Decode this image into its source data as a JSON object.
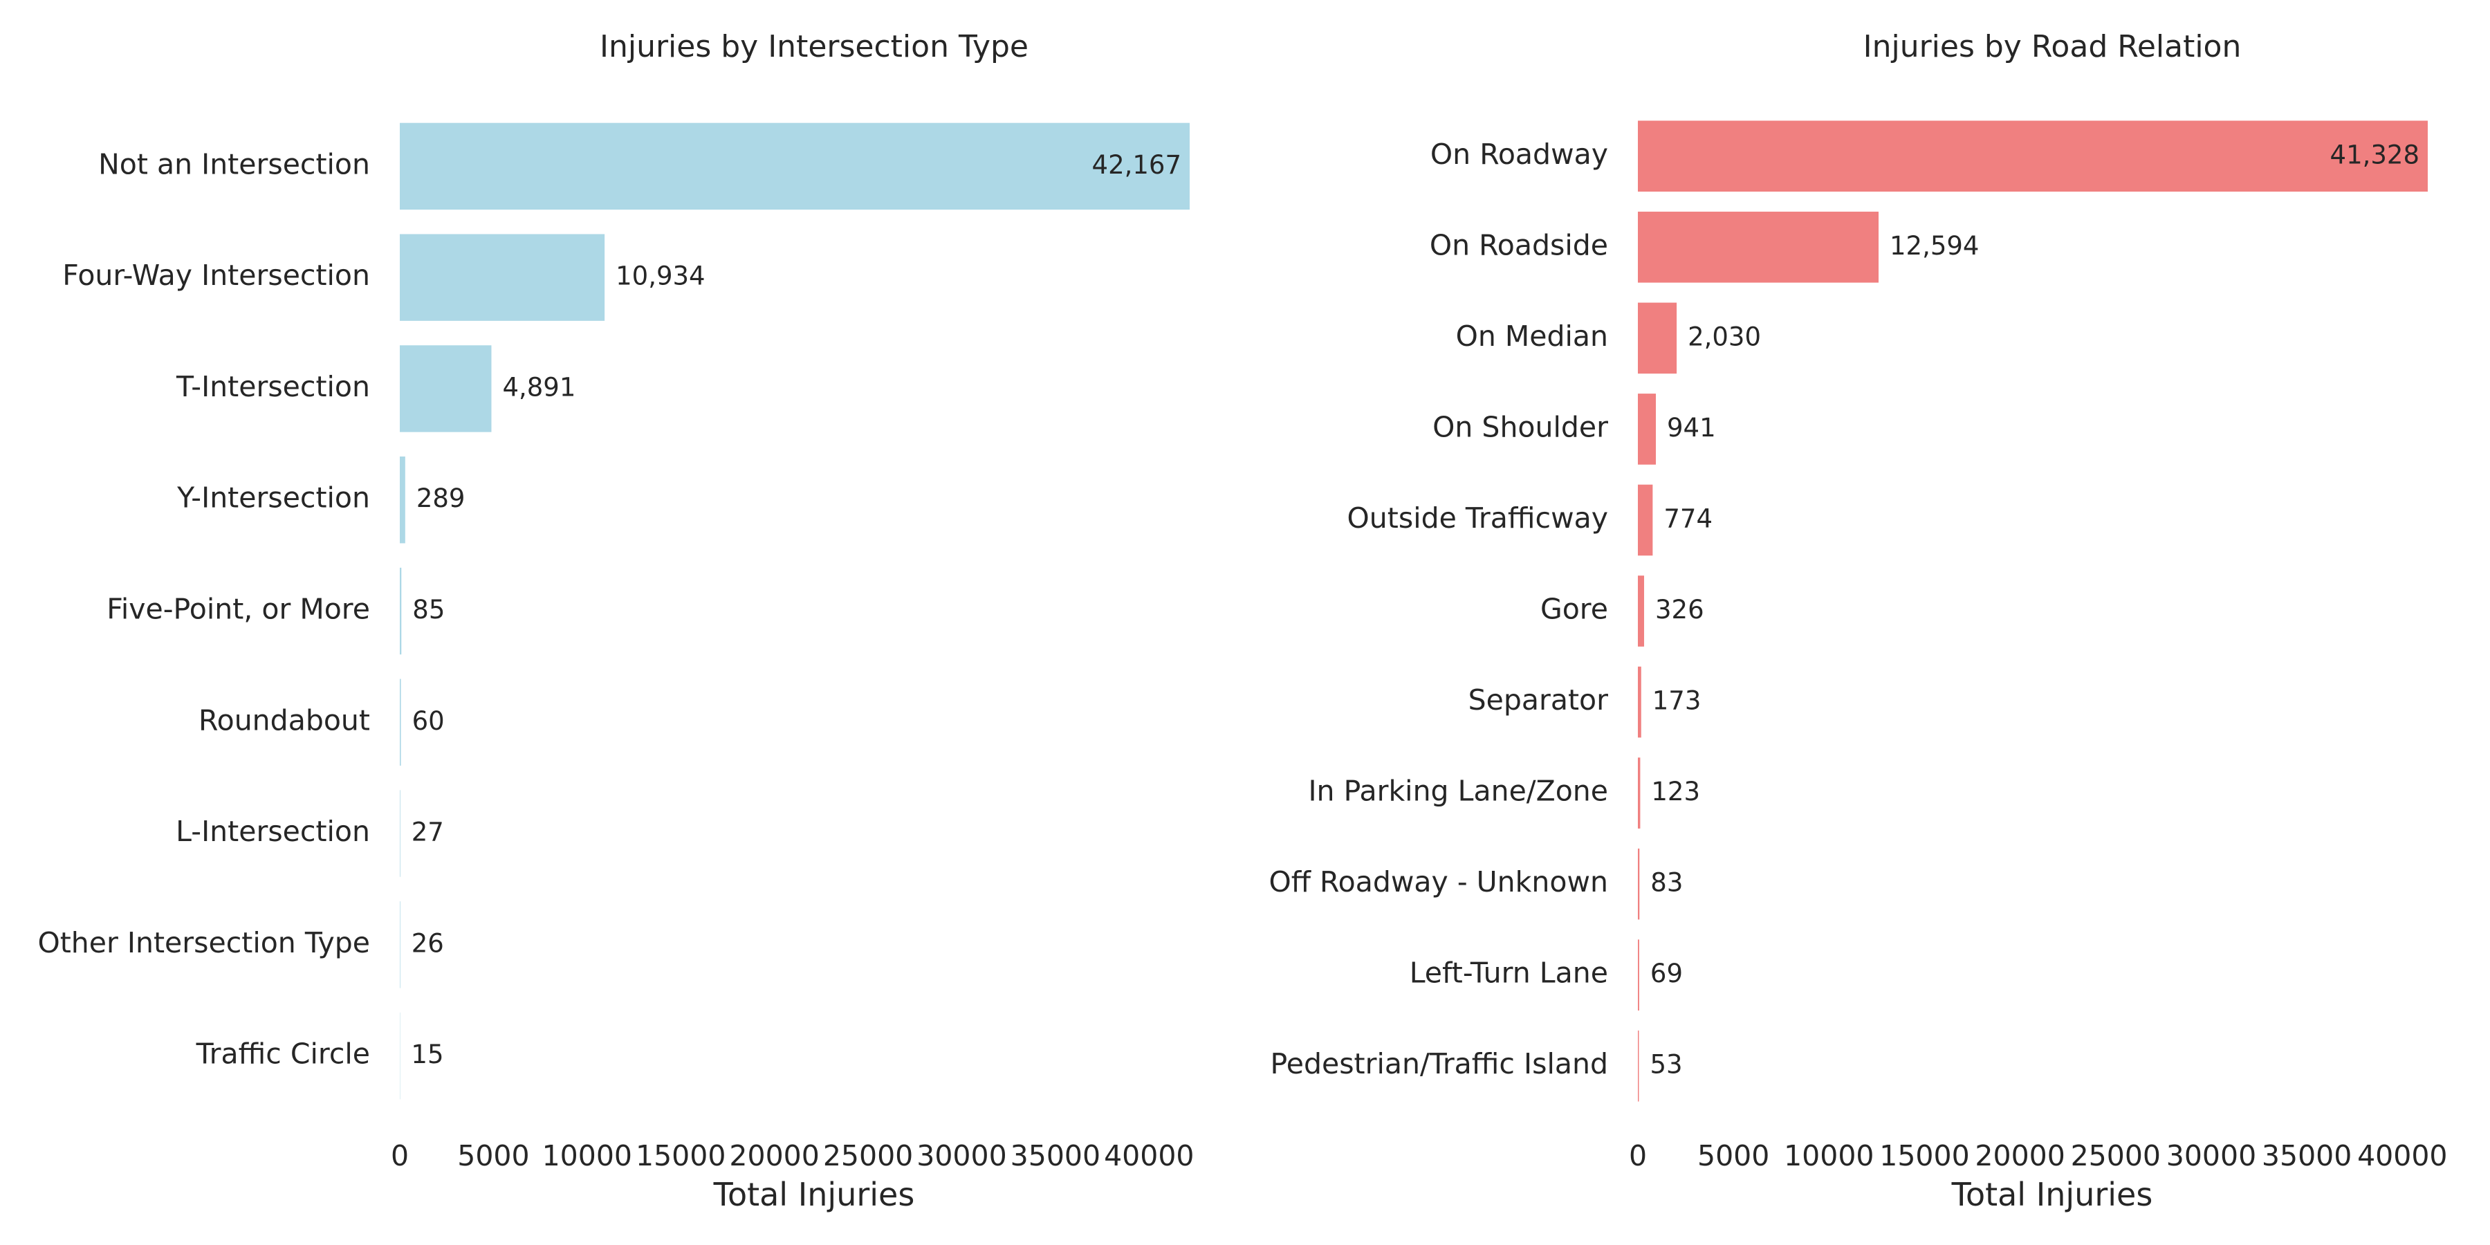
{
  "chart_data": [
    {
      "type": "bar",
      "orientation": "horizontal",
      "title": "Injuries by Intersection Type",
      "xlabel": "Total Injuries",
      "ylabel": "",
      "xlim": [
        0,
        42167
      ],
      "xticks": [
        "0",
        "5000",
        "10000",
        "15000",
        "20000",
        "25000",
        "30000",
        "35000",
        "40000"
      ],
      "xtick_values": [
        0,
        5000,
        10000,
        15000,
        20000,
        25000,
        30000,
        35000,
        40000
      ],
      "color": "#add8e6",
      "grid": false,
      "categories": [
        "Not an Intersection",
        "Four-Way Intersection",
        "T-Intersection",
        "Y-Intersection",
        "Five-Point, or More",
        "Roundabout",
        "L-Intersection",
        "Other Intersection Type",
        "Traffic Circle"
      ],
      "values": [
        42167,
        10934,
        4891,
        289,
        85,
        60,
        27,
        26,
        15
      ],
      "value_labels": [
        "42,167",
        "10,934",
        "4,891",
        "289",
        "85",
        "60",
        "27",
        "26",
        "15"
      ]
    },
    {
      "type": "bar",
      "orientation": "horizontal",
      "title": "Injuries by Road Relation",
      "xlabel": "Total Injuries",
      "ylabel": "",
      "xlim": [
        0,
        41328
      ],
      "xticks": [
        "0",
        "5000",
        "10000",
        "15000",
        "20000",
        "25000",
        "30000",
        "35000",
        "40000"
      ],
      "xtick_values": [
        0,
        5000,
        10000,
        15000,
        20000,
        25000,
        30000,
        35000,
        40000
      ],
      "color": "#f08080",
      "grid": false,
      "categories": [
        "On Roadway",
        "On Roadside",
        "On Median",
        "On Shoulder",
        "Outside Trafficway",
        "Gore",
        "Separator",
        "In Parking Lane/Zone",
        "Off Roadway - Unknown",
        "Left-Turn Lane",
        "Pedestrian/Traffic Island"
      ],
      "values": [
        41328,
        12594,
        2030,
        941,
        774,
        326,
        173,
        123,
        83,
        69,
        53
      ],
      "value_labels": [
        "41,328",
        "12,594",
        "2,030",
        "941",
        "774",
        "326",
        "173",
        "123",
        "83",
        "69",
        "53"
      ]
    }
  ]
}
